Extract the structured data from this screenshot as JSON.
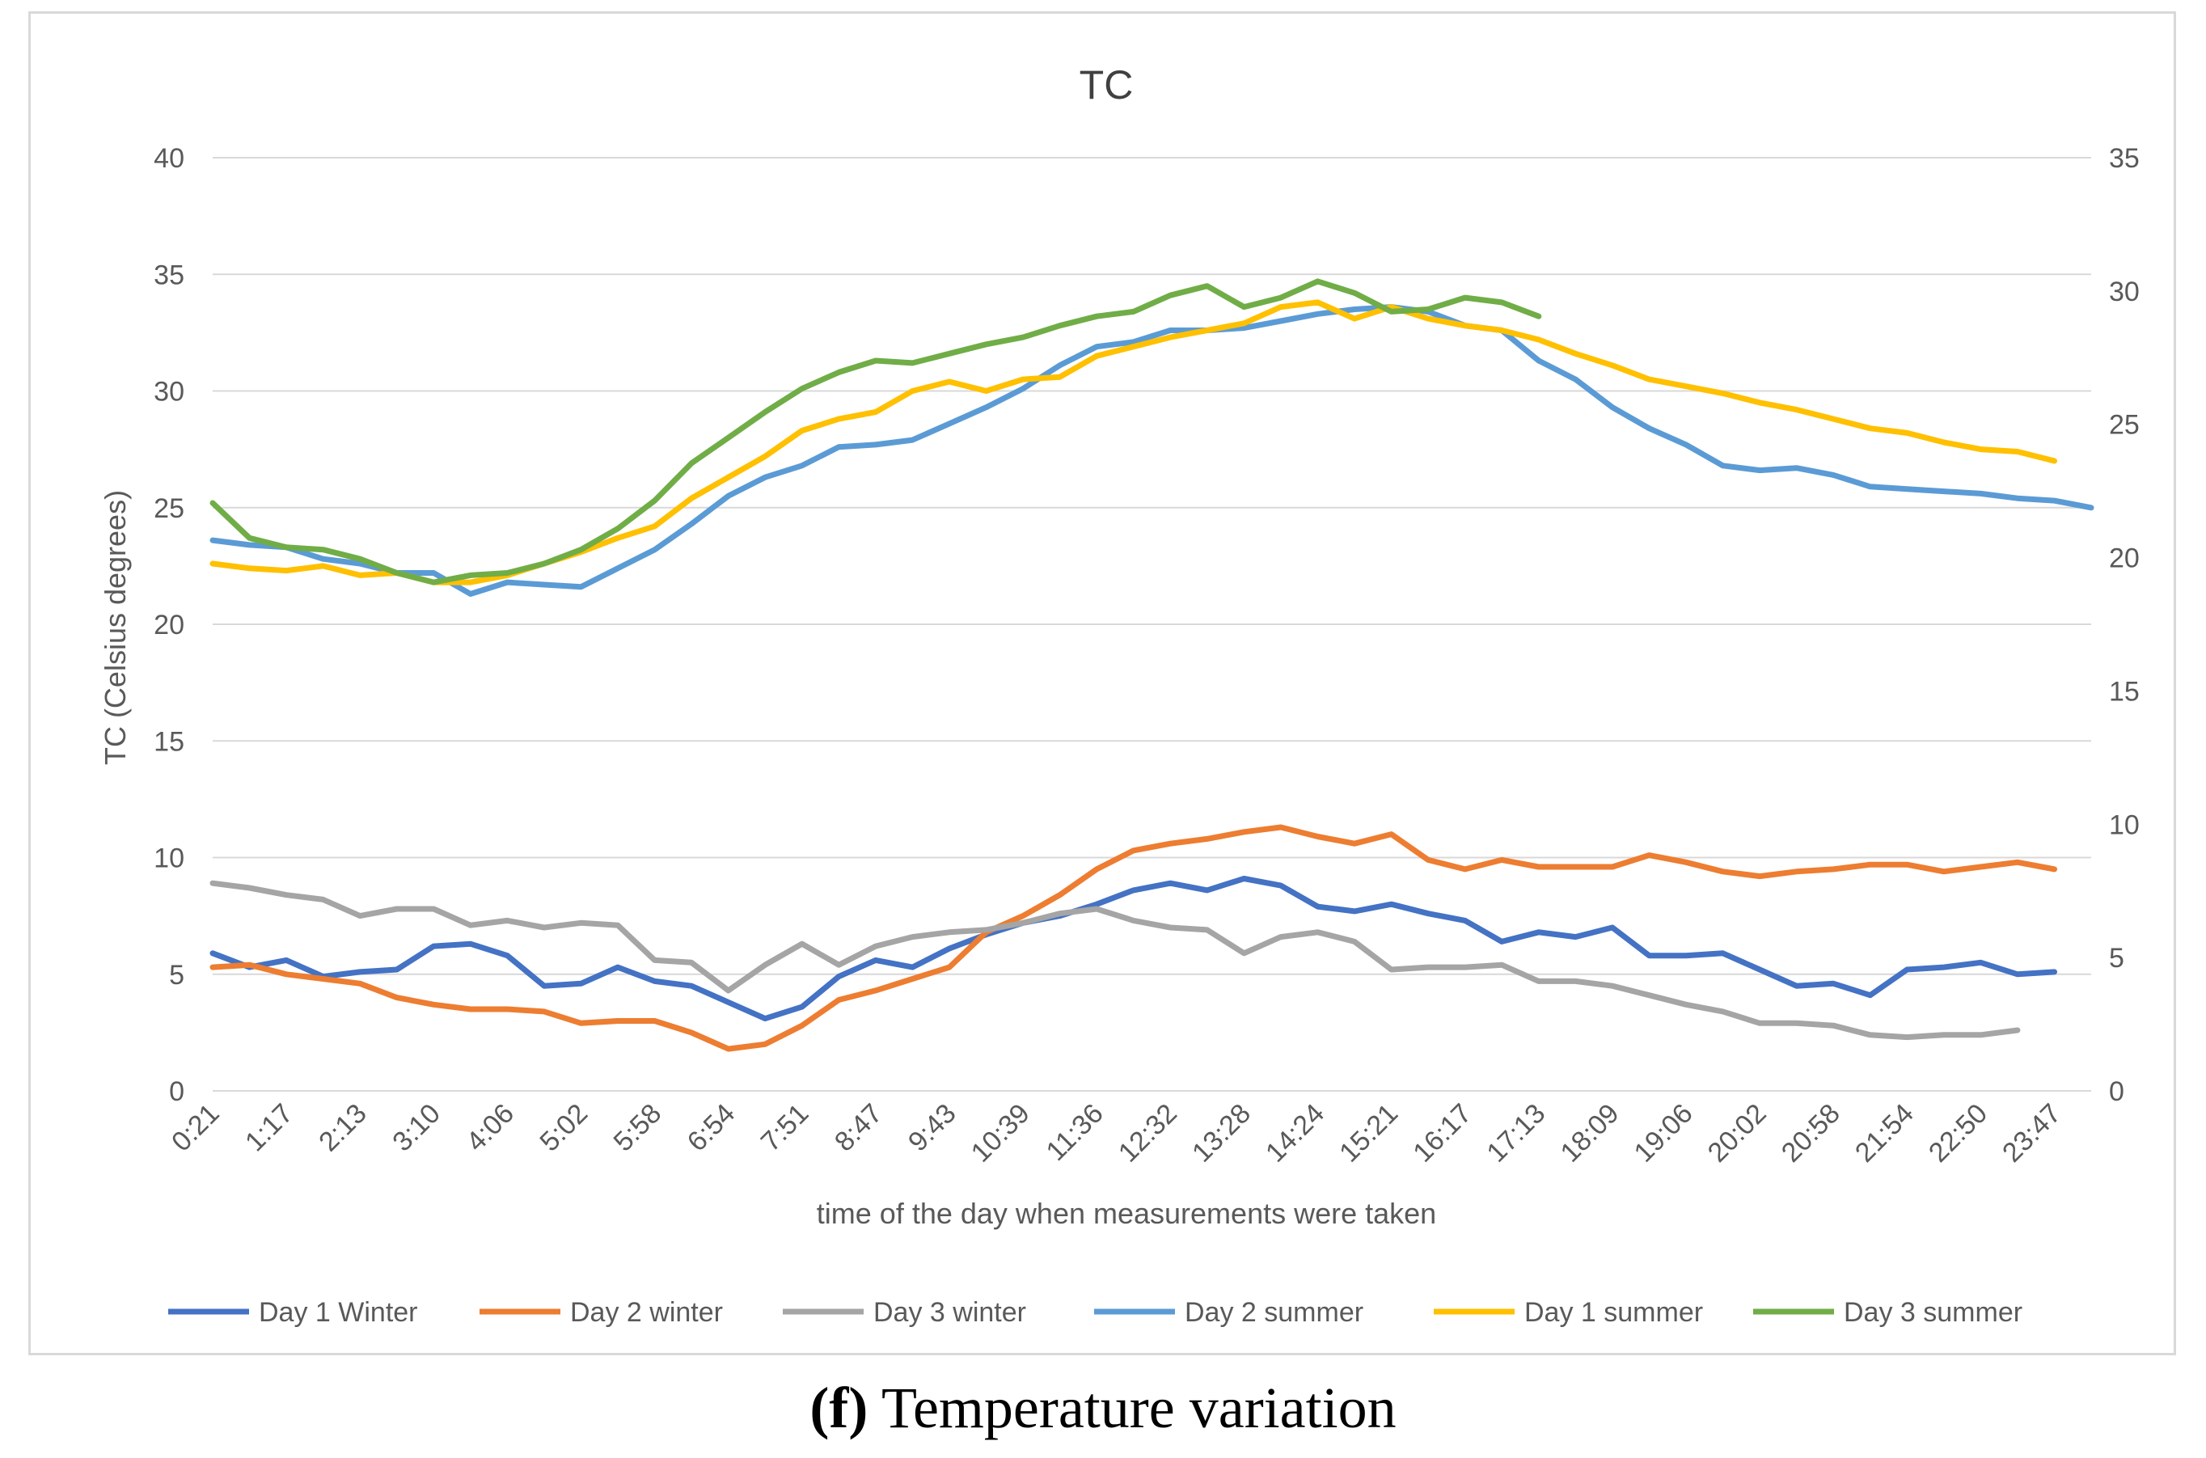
{
  "chart_data": {
    "type": "line",
    "title": "TC",
    "xlabel": "time of the day when measurements were taken",
    "ylabel": "TC (Celsius degrees)",
    "ylim": [
      0,
      40
    ],
    "y_ticks": [
      0,
      5,
      10,
      15,
      20,
      25,
      30,
      35,
      40
    ],
    "y2lim": [
      0,
      35
    ],
    "y2_ticks": [
      0,
      5,
      10,
      15,
      20,
      25,
      30,
      35
    ],
    "grid": true,
    "legend_position": "bottom",
    "x_tick_labels": [
      "0:21",
      "1:17",
      "2:13",
      "3:10",
      "4:06",
      "5:02",
      "5:58",
      "6:54",
      "7:51",
      "8:47",
      "9:43",
      "10:39",
      "11:36",
      "12:32",
      "13:28",
      "14:24",
      "15:21",
      "16:17",
      "17:13",
      "18:09",
      "19:06",
      "20:02",
      "20:58",
      "21:54",
      "22:50",
      "23:47"
    ],
    "series": [
      {
        "name": "Day 1 Winter",
        "color": "#4472c4",
        "values": [
          5.9,
          5.3,
          5.6,
          4.9,
          5.1,
          5.2,
          6.2,
          6.3,
          5.8,
          4.5,
          4.6,
          5.3,
          4.7,
          4.5,
          3.8,
          3.1,
          3.6,
          4.9,
          5.6,
          5.3,
          6.1,
          6.7,
          7.2,
          7.5,
          8.0,
          8.6,
          8.9,
          8.6,
          9.1,
          8.8,
          7.9,
          7.7,
          8.0,
          7.6,
          7.3,
          6.4,
          6.8,
          6.6,
          7.0,
          5.8,
          5.8,
          5.9,
          5.2,
          4.5,
          4.6,
          4.1,
          5.2,
          5.3,
          5.5,
          5.0,
          5.1
        ]
      },
      {
        "name": "Day 2 winter",
        "color": "#ed7d31",
        "values": [
          5.3,
          5.4,
          5.0,
          4.8,
          4.6,
          4.0,
          3.7,
          3.5,
          3.5,
          3.4,
          2.9,
          3.0,
          3.0,
          2.5,
          1.8,
          2.0,
          2.8,
          3.9,
          4.3,
          4.8,
          5.3,
          6.8,
          7.5,
          8.4,
          9.5,
          10.3,
          10.6,
          10.8,
          11.1,
          11.3,
          10.9,
          10.6,
          11.0,
          9.9,
          9.5,
          9.9,
          9.6,
          9.6,
          9.6,
          10.1,
          9.8,
          9.4,
          9.2,
          9.4,
          9.5,
          9.7,
          9.7,
          9.4,
          9.6,
          9.8,
          9.5
        ]
      },
      {
        "name": "Day 3 winter",
        "color": "#a5a5a5",
        "values": [
          8.9,
          8.7,
          8.4,
          8.2,
          7.5,
          7.8,
          7.8,
          7.1,
          7.3,
          7.0,
          7.2,
          7.1,
          5.6,
          5.5,
          4.3,
          5.4,
          6.3,
          5.4,
          6.2,
          6.6,
          6.8,
          6.9,
          7.2,
          7.6,
          7.8,
          7.3,
          7.0,
          6.9,
          5.9,
          6.6,
          6.8,
          6.4,
          5.2,
          5.3,
          5.3,
          5.4,
          4.7,
          4.7,
          4.5,
          4.1,
          3.7,
          3.4,
          2.9,
          2.9,
          2.8,
          2.4,
          2.3,
          2.4,
          2.4,
          2.6
        ]
      },
      {
        "name": "Day 2 summer",
        "color": "#5b9bd5",
        "values": [
          23.6,
          23.4,
          23.3,
          22.8,
          22.6,
          22.2,
          22.2,
          21.3,
          21.8,
          21.7,
          21.6,
          22.4,
          23.2,
          24.3,
          25.5,
          26.3,
          26.8,
          27.6,
          27.7,
          27.9,
          28.6,
          29.3,
          30.1,
          31.1,
          31.9,
          32.1,
          32.6,
          32.6,
          32.7,
          33.0,
          33.3,
          33.5,
          33.6,
          33.4,
          32.8,
          32.6,
          31.3,
          30.5,
          29.3,
          28.4,
          27.7,
          26.8,
          26.6,
          26.7,
          26.4,
          25.9,
          25.8,
          25.7,
          25.6,
          25.4,
          25.3,
          25.0
        ]
      },
      {
        "name": "Day 1 summer",
        "color": "#ffc000",
        "values": [
          22.6,
          22.4,
          22.3,
          22.5,
          22.1,
          22.2,
          21.8,
          21.8,
          22.1,
          22.6,
          23.1,
          23.7,
          24.2,
          25.4,
          26.3,
          27.2,
          28.3,
          28.8,
          29.1,
          30.0,
          30.4,
          30.0,
          30.5,
          30.6,
          31.5,
          31.9,
          32.3,
          32.6,
          32.9,
          33.6,
          33.8,
          33.1,
          33.6,
          33.1,
          32.8,
          32.6,
          32.2,
          31.6,
          31.1,
          30.5,
          30.2,
          29.9,
          29.5,
          29.2,
          28.8,
          28.4,
          28.2,
          27.8,
          27.5,
          27.4,
          27.0
        ]
      },
      {
        "name": "Day 3 summer",
        "color": "#70ad47",
        "values": [
          25.2,
          23.7,
          23.3,
          23.2,
          22.8,
          22.2,
          21.8,
          22.1,
          22.2,
          22.6,
          23.2,
          24.1,
          25.3,
          26.9,
          28.0,
          29.1,
          30.1,
          30.8,
          31.3,
          31.2,
          31.6,
          32.0,
          32.3,
          32.8,
          33.2,
          33.4,
          34.1,
          34.5,
          33.6,
          34.0,
          34.7,
          34.2,
          33.4,
          33.5,
          34.0,
          33.8,
          33.2
        ]
      }
    ]
  },
  "caption": {
    "letter": "(f)",
    "text": " Temperature variation"
  }
}
